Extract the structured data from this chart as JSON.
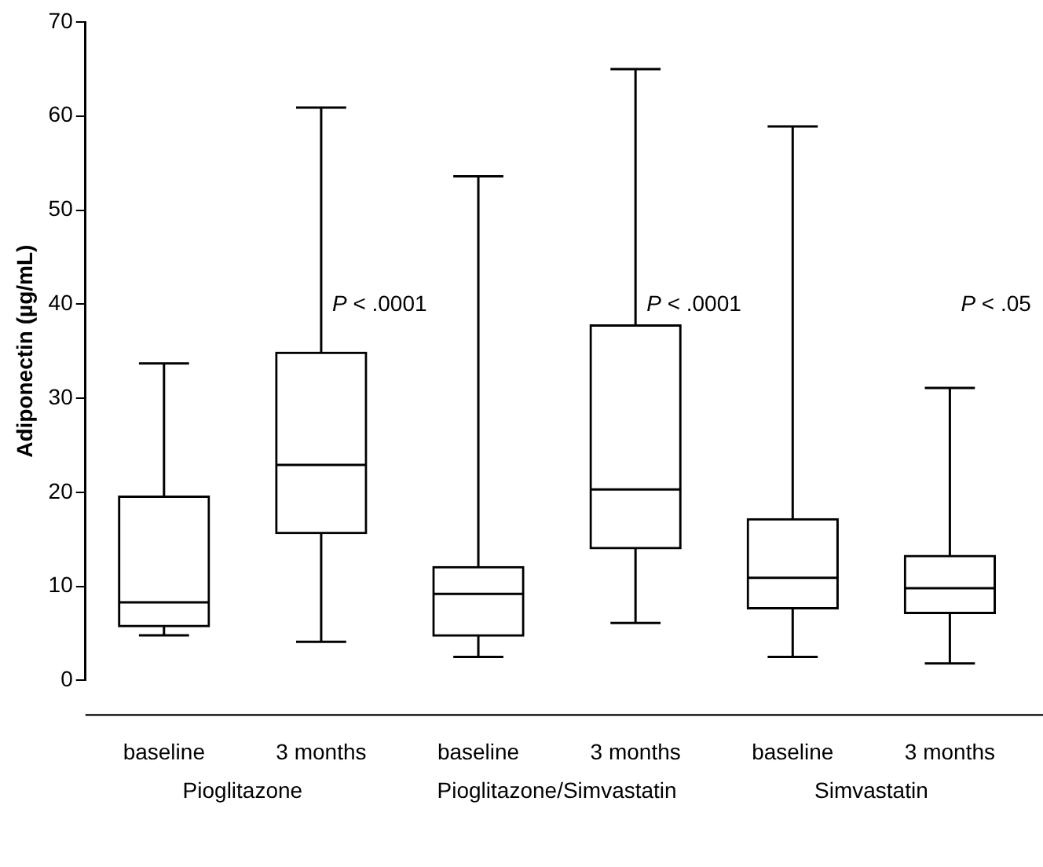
{
  "chart_data": {
    "type": "box",
    "categories": [
      "baseline",
      "3 months",
      "baseline",
      "3 months",
      "baseline",
      "3 months"
    ],
    "boxes": [
      {
        "low": 4.8,
        "q1": 5.7,
        "median": 8.3,
        "q3": 19.6,
        "high": 33.7
      },
      {
        "low": 4.1,
        "q1": 15.6,
        "median": 22.9,
        "q3": 34.9,
        "high": 60.9
      },
      {
        "low": 2.5,
        "q1": 4.7,
        "median": 9.2,
        "q3": 12.1,
        "high": 53.6
      },
      {
        "low": 6.1,
        "q1": 14,
        "median": 20.3,
        "q3": 37.8,
        "high": 65
      },
      {
        "low": 2.5,
        "q1": 7.6,
        "median": 10.9,
        "q3": 17.2,
        "high": 58.9
      },
      {
        "low": 1.8,
        "q1": 7.1,
        "median": 9.8,
        "q3": 13.3,
        "high": 31.1
      }
    ],
    "color": "#000000",
    "ylabel": "Adiponectin (µg/mL)",
    "ylim": [
      0,
      70
    ],
    "yticks": [
      0,
      10,
      20,
      30,
      40,
      50,
      60,
      70
    ],
    "annotations": [
      "Pioglitazone",
      "Pioglitazone/Simvastatin",
      "Simvastatin",
      "P < .0001",
      "P < .0001",
      "P < .05"
    ],
    "grid": false,
    "legend": false
  }
}
